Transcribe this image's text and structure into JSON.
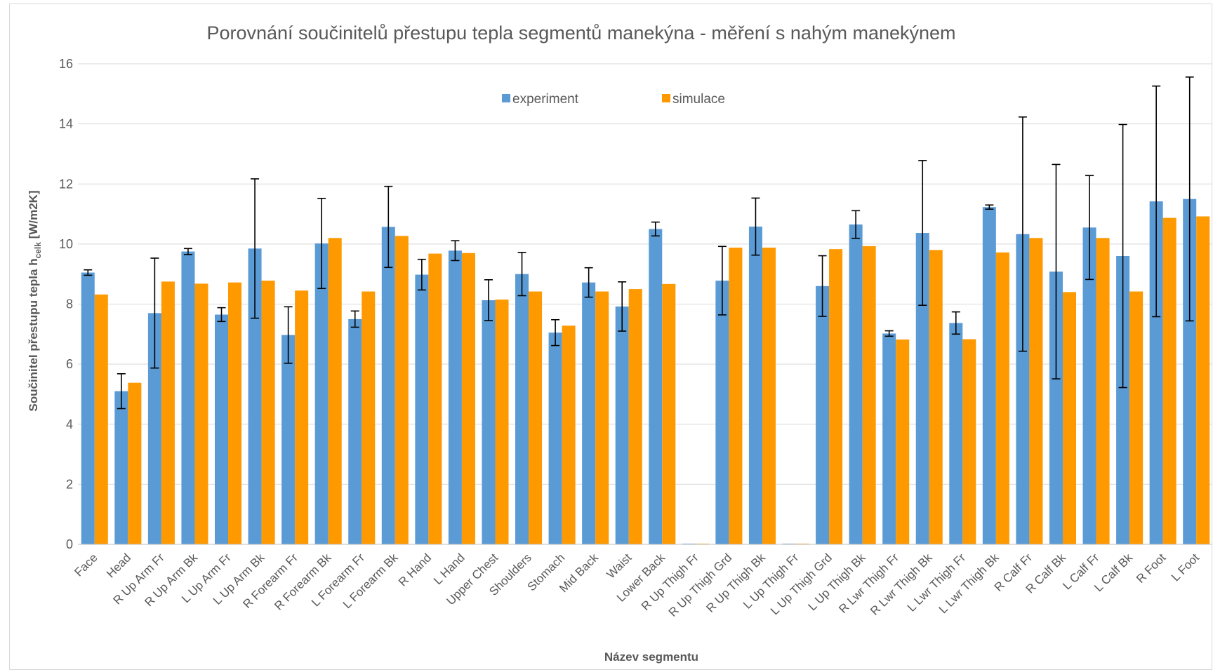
{
  "chart_data": {
    "type": "bar",
    "title": "Porovnání součinitelů přestupu tepla segmentů manekýna - měření s nahým manekýnem",
    "xlabel": "Název segmentu",
    "ylabel": "Součinitel přestupu tepla h",
    "ylabel_subscript": "celk",
    "ylabel_unit": " [W/m2K]",
    "ylim": [
      0,
      16
    ],
    "yticks": [
      0,
      2,
      4,
      6,
      8,
      10,
      12,
      14,
      16
    ],
    "grid": true,
    "legend_position": "top-center",
    "categories": [
      "Face",
      "Head",
      "R Up Arm Fr",
      "R Up Arm Bk",
      "L Up Arm Fr",
      "L Up Arm Bk",
      "R Forearm Fr",
      "R Forearm Bk",
      "L Forearm Fr",
      "L Forearm Bk",
      "R Hand",
      "L Hand",
      "Upper Chest",
      "Shoulders",
      "Stomach",
      "Mid Back",
      "Waist",
      "Lower Back",
      "R Up Thigh Fr",
      "R Up Thigh Grd",
      "R Up Thigh Bk",
      "L Up Thigh Fr",
      "L Up Thigh Grd",
      "L Up Thigh Bk",
      "R Lwr Thigh Fr",
      "R Lwr Thigh Bk",
      "L Lwr Thigh Fr",
      "L Lwr Thigh Bk",
      "R Calf Fr",
      "R Calf Bk",
      "L Calf Fr",
      "L Calf Bk",
      "R Foot",
      "L Foot"
    ],
    "series": [
      {
        "name": "experiment",
        "color": "#5b9bd5",
        "values": [
          9.05,
          5.1,
          7.7,
          9.75,
          7.65,
          9.85,
          6.97,
          10.02,
          7.5,
          10.57,
          8.98,
          9.78,
          8.13,
          9.0,
          7.05,
          8.72,
          7.92,
          10.5,
          0.0,
          8.78,
          10.58,
          0.0,
          8.6,
          10.65,
          7.02,
          10.37,
          7.37,
          11.23,
          10.33,
          9.08,
          10.55,
          9.6,
          11.42,
          11.5
        ],
        "errors": [
          0.09,
          0.58,
          1.83,
          0.1,
          0.23,
          2.32,
          0.94,
          1.5,
          0.27,
          1.35,
          0.51,
          0.33,
          0.68,
          0.72,
          0.43,
          0.49,
          0.82,
          0.23,
          0.0,
          1.14,
          0.95,
          0.0,
          1.01,
          0.46,
          0.09,
          2.41,
          0.37,
          0.07,
          3.9,
          3.57,
          1.73,
          4.38,
          3.84,
          4.06
        ]
      },
      {
        "name": "simulace",
        "color": "#ff9900",
        "values": [
          8.32,
          5.38,
          8.75,
          8.68,
          8.72,
          8.78,
          8.45,
          10.2,
          8.42,
          10.27,
          9.68,
          9.7,
          8.15,
          8.42,
          7.28,
          8.42,
          8.5,
          8.67,
          0.0,
          9.88,
          9.88,
          0.0,
          9.83,
          9.93,
          6.82,
          9.8,
          6.83,
          9.72,
          10.2,
          8.4,
          10.2,
          8.42,
          10.87,
          10.92
        ]
      }
    ]
  }
}
